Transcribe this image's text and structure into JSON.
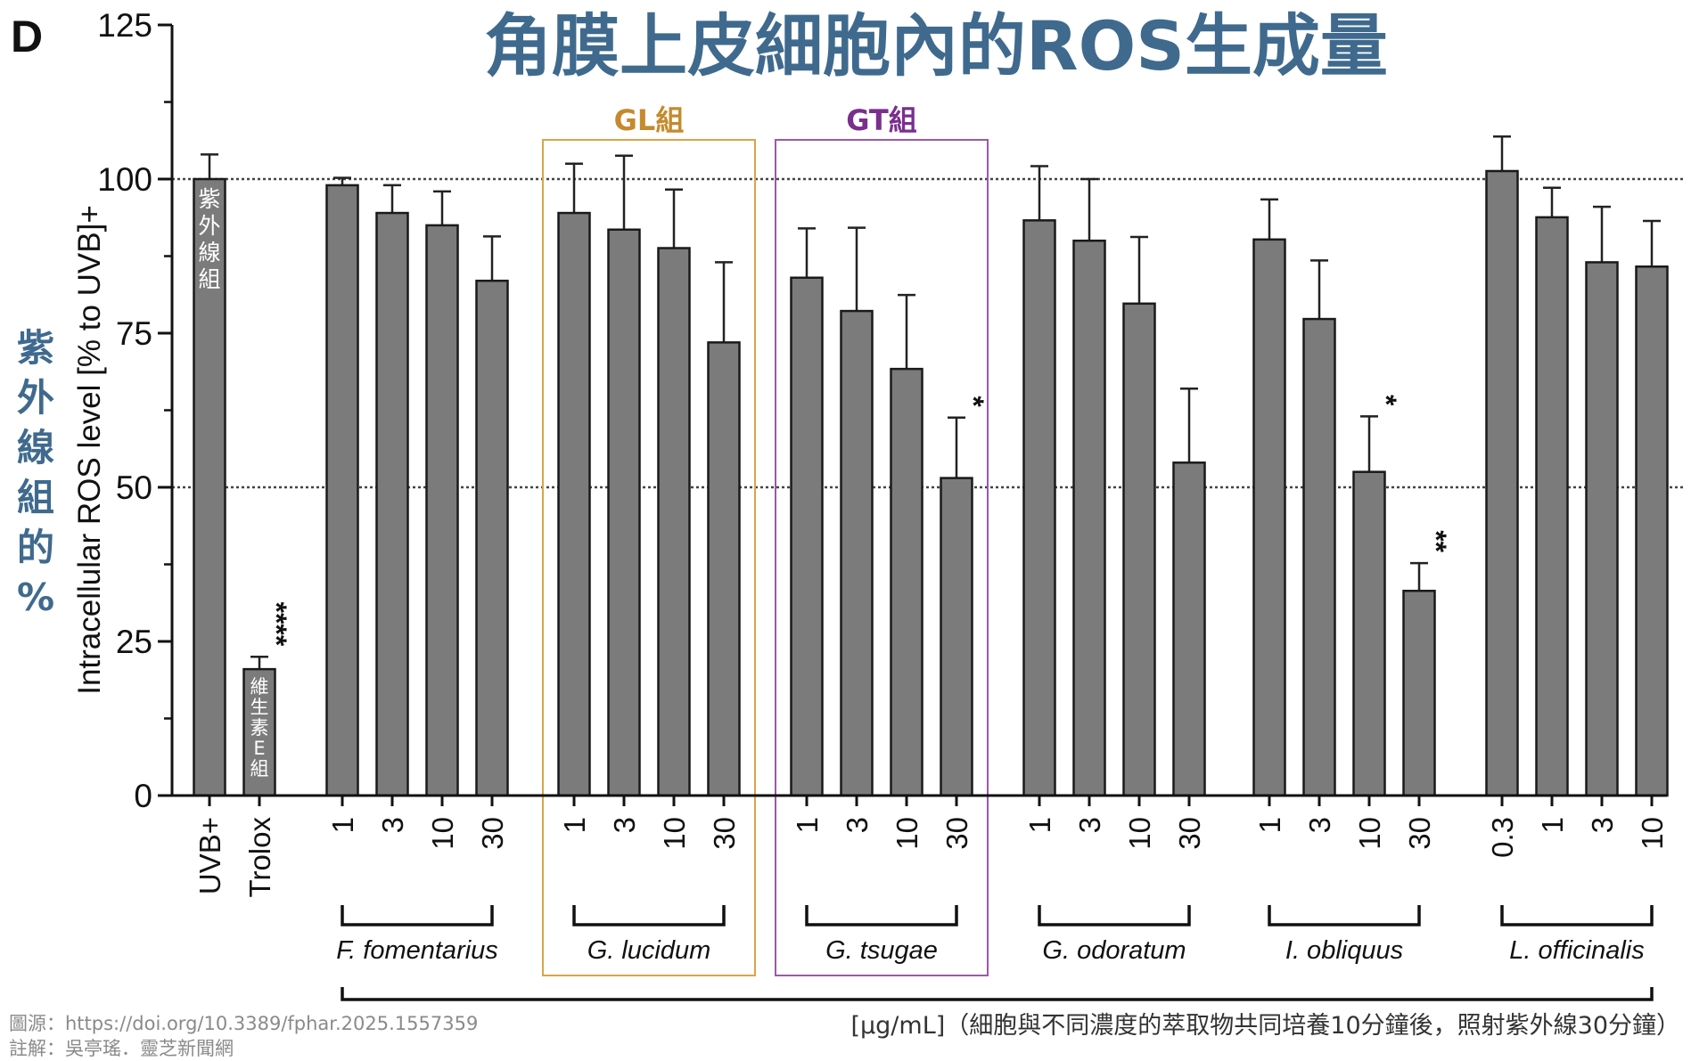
{
  "panel_letter": "D",
  "colors": {
    "bar": "#7b7b7b",
    "title": "#3f6a8e",
    "gl_box": "#d9a548",
    "gl_label": "#c48a2c",
    "gt_box": "#9a5aa6",
    "gt_label": "#7a2f8e"
  },
  "footer": {
    "source": "圖源：https://doi.org/10.3389/fphar.2025.1557359",
    "note": "註解：吳亭瑤．靈芝新聞網",
    "unit": "[µg/mL]",
    "unit_note": "（細胞與不同濃度的萃取物共同培養10分鐘後，照射紫外線30分鐘）"
  },
  "chart_data": {
    "type": "bar",
    "title": "角膜上皮細胞內的ROS生成量",
    "ylabel": "Intracellular ROS level [% to UVB]+",
    "ylabel_cn": "紫外線組的%",
    "xlabel": "[µg/mL]",
    "ylim": [
      0,
      125
    ],
    "yticks": [
      "0",
      "25",
      "50",
      "75",
      "100",
      "125"
    ],
    "reference_lines": [
      50,
      100
    ],
    "bars": [
      {
        "label": "UVB+",
        "value": 100,
        "error": 4,
        "sig": "",
        "inner": "紫外線組"
      },
      {
        "label": "Trolox",
        "value": 20.5,
        "error": 2,
        "sig": "****",
        "inner": "維生素E組"
      },
      {
        "label": "1",
        "value": 99,
        "error": 1.2,
        "sig": "",
        "inner": ""
      },
      {
        "label": "3",
        "value": 94.5,
        "error": 4.5,
        "sig": "",
        "inner": ""
      },
      {
        "label": "10",
        "value": 92.5,
        "error": 5.5,
        "sig": "",
        "inner": ""
      },
      {
        "label": "30",
        "value": 83.5,
        "error": 7.2,
        "sig": "",
        "inner": ""
      },
      {
        "label": "1",
        "value": 94.5,
        "error": 8,
        "sig": "",
        "inner": ""
      },
      {
        "label": "3",
        "value": 91.8,
        "error": 12,
        "sig": "",
        "inner": ""
      },
      {
        "label": "10",
        "value": 88.8,
        "error": 9.5,
        "sig": "",
        "inner": ""
      },
      {
        "label": "30",
        "value": 73.5,
        "error": 13,
        "sig": "",
        "inner": ""
      },
      {
        "label": "1",
        "value": 84,
        "error": 8,
        "sig": "",
        "inner": ""
      },
      {
        "label": "3",
        "value": 78.6,
        "error": 13.5,
        "sig": "",
        "inner": ""
      },
      {
        "label": "10",
        "value": 69.2,
        "error": 12,
        "sig": "",
        "inner": ""
      },
      {
        "label": "30",
        "value": 51.5,
        "error": 9.8,
        "sig": "*",
        "inner": ""
      },
      {
        "label": "1",
        "value": 93.3,
        "error": 8.8,
        "sig": "",
        "inner": ""
      },
      {
        "label": "3",
        "value": 90,
        "error": 10,
        "sig": "",
        "inner": ""
      },
      {
        "label": "10",
        "value": 79.8,
        "error": 10.8,
        "sig": "",
        "inner": ""
      },
      {
        "label": "30",
        "value": 54,
        "error": 12,
        "sig": "",
        "inner": ""
      },
      {
        "label": "1",
        "value": 90.2,
        "error": 6.5,
        "sig": "",
        "inner": ""
      },
      {
        "label": "3",
        "value": 77.3,
        "error": 9.5,
        "sig": "",
        "inner": ""
      },
      {
        "label": "10",
        "value": 52.5,
        "error": 9,
        "sig": "*",
        "inner": ""
      },
      {
        "label": "30",
        "value": 33.2,
        "error": 4.5,
        "sig": "**",
        "inner": ""
      },
      {
        "label": "0.3",
        "value": 101.3,
        "error": 5.6,
        "sig": "",
        "inner": ""
      },
      {
        "label": "1",
        "value": 93.8,
        "error": 4.8,
        "sig": "",
        "inner": ""
      },
      {
        "label": "3",
        "value": 86.5,
        "error": 9,
        "sig": "",
        "inner": ""
      },
      {
        "label": "10",
        "value": 85.8,
        "error": 7.4,
        "sig": "",
        "inner": ""
      }
    ],
    "groups": [
      {
        "name": "F. fomentarius",
        "first": 2,
        "last": 5,
        "box": "",
        "box_label": ""
      },
      {
        "name": "G. lucidum",
        "first": 6,
        "last": 9,
        "box": "gl",
        "box_label": "GL組"
      },
      {
        "name": "G. tsugae",
        "first": 10,
        "last": 13,
        "box": "gt",
        "box_label": "GT組"
      },
      {
        "name": "G. odoratum",
        "first": 14,
        "last": 17,
        "box": "",
        "box_label": ""
      },
      {
        "name": "I. obliquus",
        "first": 18,
        "last": 21,
        "box": "",
        "box_label": ""
      },
      {
        "name": "L. officinalis",
        "first": 22,
        "last": 25,
        "box": "",
        "box_label": ""
      }
    ]
  }
}
